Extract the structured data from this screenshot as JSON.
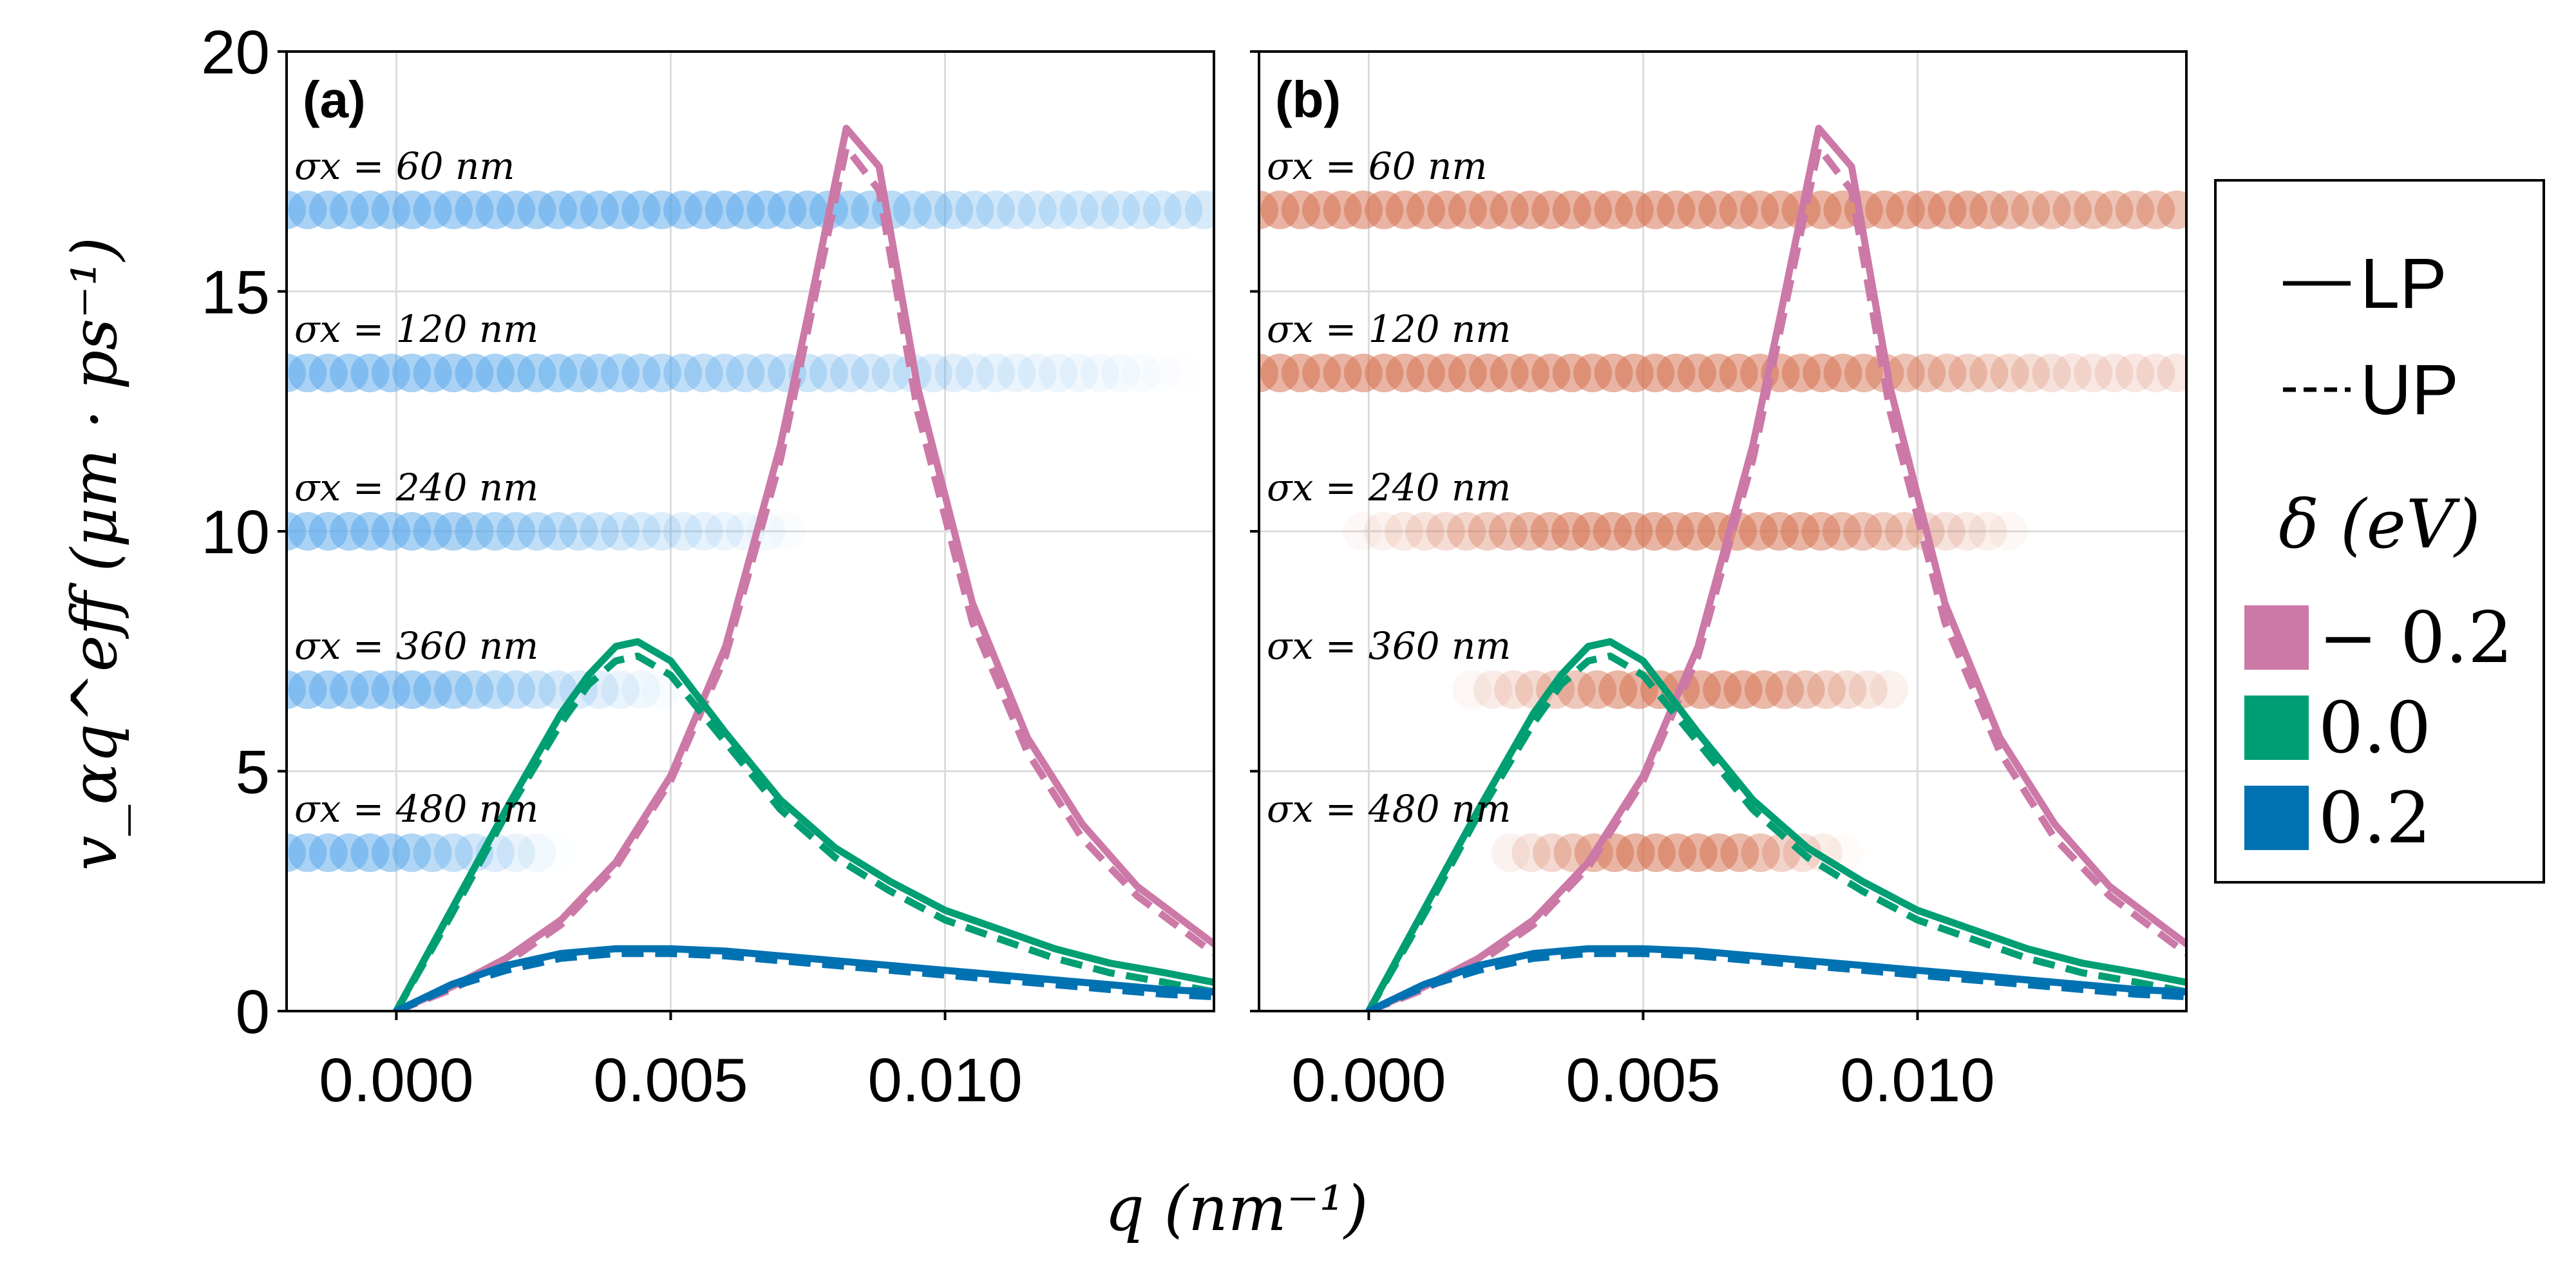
{
  "chart_data": {
    "type": "line",
    "xlabel": "q (nm⁻¹)",
    "ylabel": "v_αq^eff (μm · ps⁻¹)",
    "xlim": [
      -0.002,
      0.0149
    ],
    "ylim": [
      0,
      20
    ],
    "xticks": [
      0.0,
      0.005,
      0.01
    ],
    "xtick_labels": [
      "0.000",
      "0.005",
      "0.010"
    ],
    "yticks": [
      0,
      5,
      10,
      15,
      20
    ],
    "ytick_labels": [
      "0",
      "5",
      "10",
      "15",
      "20"
    ],
    "grid": true,
    "legend_position": "right",
    "legend": {
      "line_styles": [
        {
          "label": "LP",
          "style": "solid"
        },
        {
          "label": "UP",
          "style": "dashed"
        }
      ],
      "title": "δ (eV)",
      "entries": [
        {
          "label": "− 0.2",
          "delta": -0.2,
          "color": "#cc79a7"
        },
        {
          "label": "0.0",
          "delta": 0.0,
          "color": "#009e73"
        },
        {
          "label": "0.2",
          "delta": 0.2,
          "color": "#0072b2"
        }
      ]
    },
    "panels": [
      {
        "label": "(a)",
        "band_color": "#5aa9ea",
        "bands": [
          {
            "label": "σx = 60 nm",
            "y": 16.7,
            "start": -0.002,
            "end": 0.0149,
            "full_until": 0.0075,
            "fade_to": 0.0149,
            "min_alpha": 0.45
          },
          {
            "label": "σx = 120 nm",
            "y": 13.3,
            "start": -0.002,
            "end": 0.0145,
            "full_until": 0.002,
            "fade_to": 0.0145,
            "min_alpha": 0.0
          },
          {
            "label": "σx = 240 nm",
            "y": 10.0,
            "start": -0.002,
            "end": 0.0075,
            "full_until": 0.0008,
            "fade_to": 0.0075,
            "min_alpha": 0.0
          },
          {
            "label": "σx = 360 nm",
            "y": 6.7,
            "start": -0.002,
            "end": 0.0052,
            "full_until": 0.0005,
            "fade_to": 0.0052,
            "min_alpha": 0.0
          },
          {
            "label": "σx = 480 nm",
            "y": 3.3,
            "start": -0.002,
            "end": 0.003,
            "full_until": 0.0,
            "fade_to": 0.003,
            "min_alpha": 0.0
          }
        ]
      },
      {
        "label": "(b)",
        "band_color": "#d4704e",
        "bands": [
          {
            "label": "σx = 60 nm",
            "y": 16.7,
            "start": -0.002,
            "end": 0.0149,
            "full_until": 0.011,
            "fade_to": 0.0149,
            "min_alpha": 0.75
          },
          {
            "label": "σx = 120 nm",
            "y": 13.3,
            "start": -0.002,
            "end": 0.0149,
            "full_until": 0.0085,
            "fade_to": 0.0149,
            "min_alpha": 0.3
          },
          {
            "label": "σx = 240 nm",
            "y": 10.0,
            "start": -0.0005,
            "end": 0.0118,
            "center": 0.0058,
            "full_half": 0.0022,
            "fade_half": 0.0063
          },
          {
            "label": "σx = 360 nm",
            "y": 6.7,
            "start": 0.0015,
            "end": 0.0098,
            "center": 0.0058,
            "full_half": 0.0012,
            "fade_half": 0.0043
          },
          {
            "label": "σx = 480 nm",
            "y": 3.3,
            "start": 0.0022,
            "end": 0.0088,
            "center": 0.0055,
            "full_half": 0.0011,
            "fade_half": 0.0033
          }
        ]
      }
    ],
    "series": [
      {
        "name": "δ = −0.2 eV, LP",
        "delta": -0.2,
        "branch": "LP",
        "color": "#cc79a7",
        "x": [
          0,
          0.001,
          0.002,
          0.003,
          0.004,
          0.005,
          0.006,
          0.007,
          0.0075,
          0.0082,
          0.0088,
          0.0095,
          0.0105,
          0.0115,
          0.0125,
          0.0135,
          0.0149
        ],
        "y": [
          0,
          0.5,
          1.1,
          1.9,
          3.1,
          4.9,
          7.6,
          11.8,
          14.5,
          18.4,
          17.6,
          13.0,
          8.5,
          5.7,
          3.9,
          2.6,
          1.4
        ]
      },
      {
        "name": "δ = −0.2 eV, UP",
        "delta": -0.2,
        "branch": "UP",
        "color": "#cc79a7",
        "x": [
          0,
          0.001,
          0.002,
          0.003,
          0.004,
          0.005,
          0.006,
          0.007,
          0.0075,
          0.0082,
          0.0088,
          0.0095,
          0.0105,
          0.0115,
          0.0125,
          0.0135,
          0.0149
        ],
        "y": [
          0,
          0.45,
          1.0,
          1.8,
          3.0,
          4.8,
          7.4,
          11.5,
          14.2,
          18.0,
          17.1,
          12.5,
          8.1,
          5.4,
          3.6,
          2.4,
          1.2
        ]
      },
      {
        "name": "δ = 0.0 eV, LP",
        "delta": 0.0,
        "branch": "LP",
        "color": "#009e73",
        "x": [
          0,
          0.001,
          0.002,
          0.003,
          0.0035,
          0.004,
          0.0044,
          0.005,
          0.006,
          0.007,
          0.008,
          0.009,
          0.01,
          0.011,
          0.012,
          0.013,
          0.014,
          0.0149
        ],
        "y": [
          0,
          2.1,
          4.2,
          6.2,
          7.0,
          7.6,
          7.7,
          7.3,
          5.8,
          4.4,
          3.4,
          2.7,
          2.1,
          1.7,
          1.3,
          1.0,
          0.8,
          0.6
        ]
      },
      {
        "name": "δ = 0.0 eV, UP",
        "delta": 0.0,
        "branch": "UP",
        "color": "#009e73",
        "x": [
          0,
          0.001,
          0.002,
          0.003,
          0.0035,
          0.004,
          0.0044,
          0.005,
          0.006,
          0.007,
          0.008,
          0.009,
          0.01,
          0.011,
          0.012,
          0.013,
          0.014,
          0.0149
        ],
        "y": [
          0,
          2.0,
          4.1,
          6.0,
          6.8,
          7.3,
          7.4,
          7.0,
          5.6,
          4.2,
          3.2,
          2.5,
          1.9,
          1.5,
          1.1,
          0.8,
          0.6,
          0.4
        ]
      },
      {
        "name": "δ = 0.2 eV, LP",
        "delta": 0.2,
        "branch": "LP",
        "color": "#0072b2",
        "x": [
          0,
          0.001,
          0.002,
          0.003,
          0.004,
          0.005,
          0.006,
          0.007,
          0.008,
          0.009,
          0.01,
          0.011,
          0.012,
          0.013,
          0.014,
          0.0149
        ],
        "y": [
          0,
          0.55,
          0.95,
          1.2,
          1.3,
          1.3,
          1.25,
          1.15,
          1.05,
          0.95,
          0.85,
          0.75,
          0.65,
          0.55,
          0.45,
          0.4
        ]
      },
      {
        "name": "δ = 0.2 eV, UP",
        "delta": 0.2,
        "branch": "UP",
        "color": "#0072b2",
        "x": [
          0,
          0.001,
          0.002,
          0.003,
          0.004,
          0.005,
          0.006,
          0.007,
          0.008,
          0.009,
          0.01,
          0.011,
          0.012,
          0.013,
          0.014,
          0.0149
        ],
        "y": [
          0,
          0.5,
          0.85,
          1.1,
          1.2,
          1.2,
          1.15,
          1.05,
          0.95,
          0.85,
          0.75,
          0.65,
          0.55,
          0.45,
          0.35,
          0.3
        ]
      }
    ]
  }
}
